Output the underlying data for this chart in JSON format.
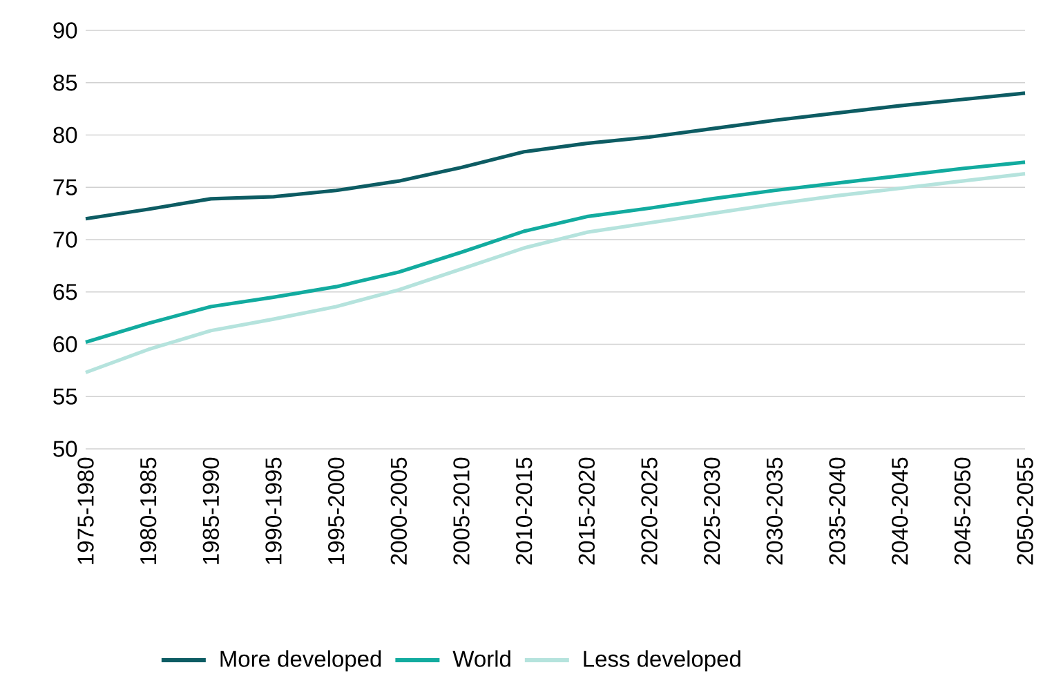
{
  "chart_data": {
    "type": "line",
    "categories": [
      "1975-1980",
      "1980-1985",
      "1985-1990",
      "1990-1995",
      "1995-2000",
      "2000-2005",
      "2005-2010",
      "2010-2015",
      "2015-2020",
      "2020-2025",
      "2025-2030",
      "2030-2035",
      "2035-2040",
      "2040-2045",
      "2045-2050",
      "2050-2055"
    ],
    "series": [
      {
        "name": "More developed",
        "color": "#0d5c63",
        "values": [
          72.0,
          72.9,
          73.9,
          74.1,
          74.7,
          75.6,
          76.9,
          78.4,
          79.2,
          79.8,
          80.6,
          81.4,
          82.1,
          82.8,
          83.4,
          84.0
        ]
      },
      {
        "name": "World",
        "color": "#12ab9f",
        "values": [
          60.2,
          62.0,
          63.6,
          64.5,
          65.5,
          66.9,
          68.8,
          70.8,
          72.2,
          73.0,
          73.9,
          74.7,
          75.4,
          76.1,
          76.8,
          77.4
        ]
      },
      {
        "name": "Less developed",
        "color": "#b5e3dd",
        "values": [
          57.3,
          59.5,
          61.3,
          62.4,
          63.6,
          65.2,
          67.2,
          69.2,
          70.7,
          71.6,
          72.5,
          73.4,
          74.2,
          74.9,
          75.6,
          76.3
        ]
      }
    ],
    "ylim": [
      50,
      90
    ],
    "yticks": [
      50,
      55,
      60,
      65,
      70,
      75,
      80,
      85,
      90
    ],
    "grid": "y",
    "legend": "bottom",
    "marker": "none",
    "line_style": "solid"
  }
}
